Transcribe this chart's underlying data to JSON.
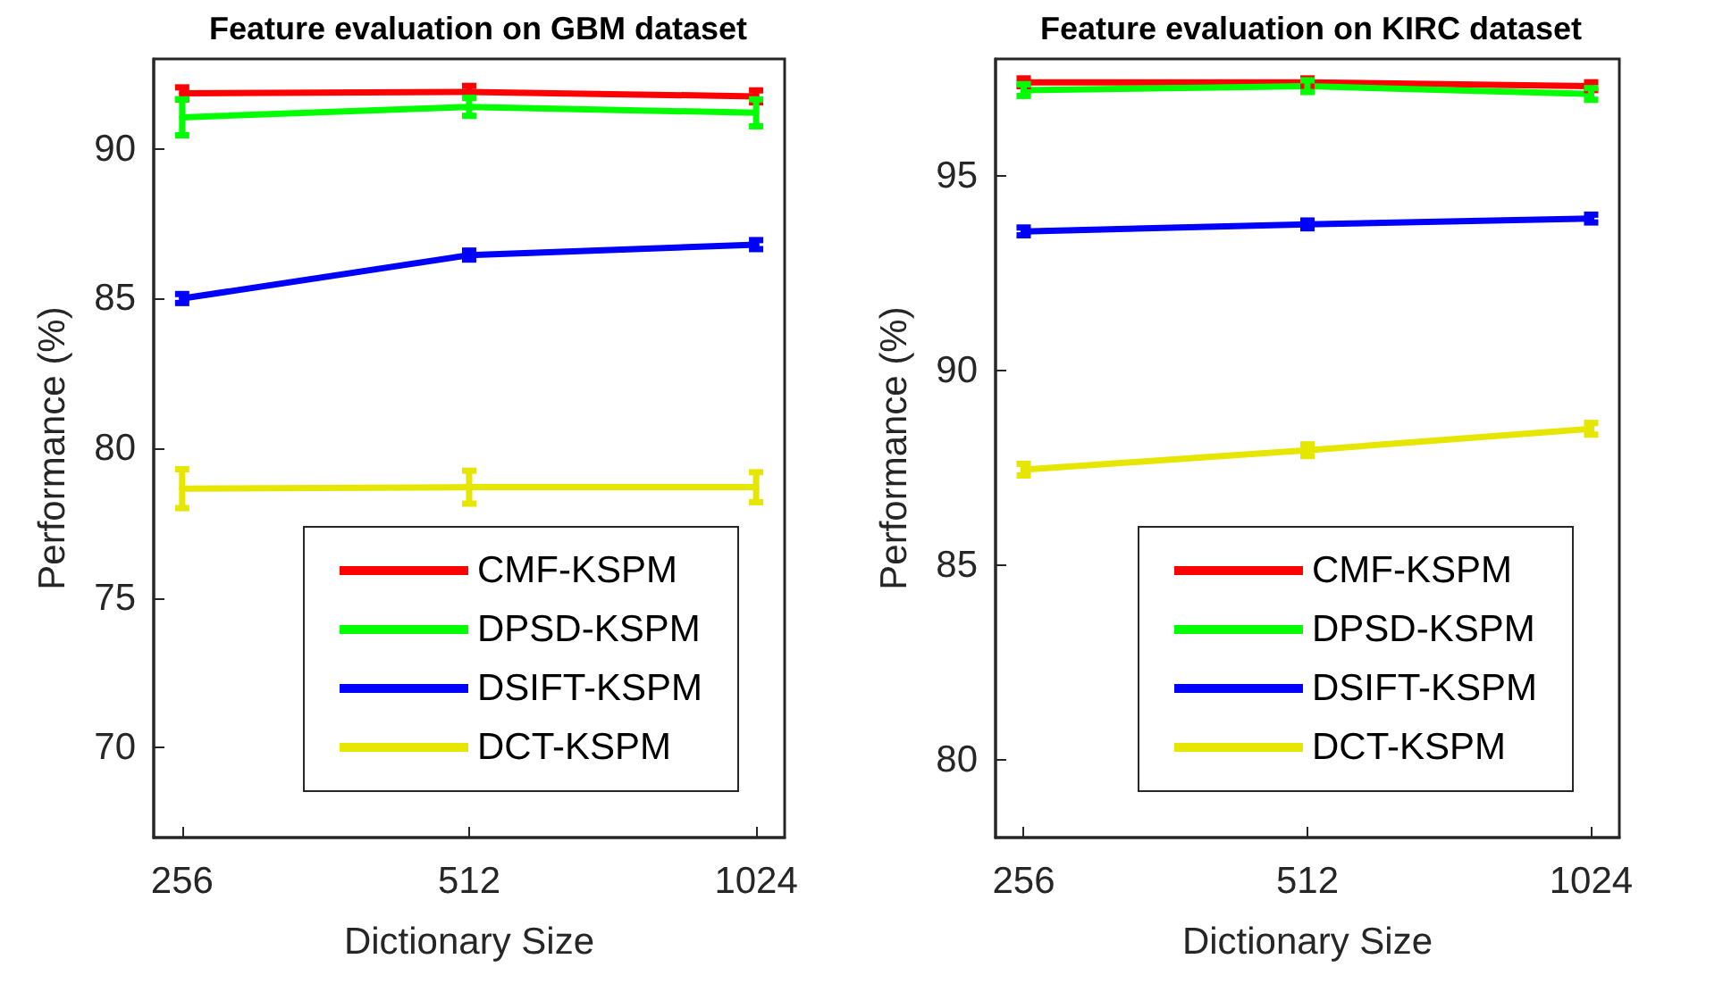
{
  "chart_data": [
    {
      "type": "line",
      "title": "Feature evaluation on GBM dataset",
      "xlabel": "Dictionary Size",
      "ylabel": "Performance (%)",
      "x": [
        256,
        512,
        1024
      ],
      "series": [
        {
          "name": "CMF-KSPM",
          "color": "#ff0000",
          "values": [
            91.85,
            91.9,
            91.75
          ],
          "errors": [
            0.2,
            0.2,
            0.2
          ]
        },
        {
          "name": "DPSD-KSPM",
          "color": "#00ff00",
          "values": [
            91.05,
            91.4,
            91.2
          ],
          "errors": [
            0.6,
            0.3,
            0.45
          ]
        },
        {
          "name": "DSIFT-KSPM",
          "color": "#0000ff",
          "values": [
            85.0,
            86.45,
            86.8
          ],
          "errors": [
            0.15,
            0.15,
            0.15
          ]
        },
        {
          "name": "DCT-KSPM",
          "color": "#e6e600",
          "values": [
            78.65,
            78.7,
            78.7
          ],
          "errors": [
            0.65,
            0.55,
            0.5
          ]
        }
      ],
      "xlim": [
        239,
        1097
      ],
      "xticks": [
        256,
        512,
        1024
      ],
      "ylim": [
        67,
        93
      ],
      "yticks": [
        70,
        75,
        80,
        85,
        90
      ],
      "log": "x",
      "legend": "bottom right",
      "grid": false,
      "marker": "none",
      "line_style": "solid"
    },
    {
      "type": "line",
      "title": "Feature evaluation on KIRC dataset",
      "xlabel": "Dictionary Size",
      "ylabel": "Performance (%)",
      "x": [
        256,
        512,
        1024
      ],
      "series": [
        {
          "name": "CMF-KSPM",
          "color": "#ff0000",
          "values": [
            97.4,
            97.4,
            97.3
          ],
          "errors": [
            0.1,
            0.1,
            0.1
          ]
        },
        {
          "name": "DPSD-KSPM",
          "color": "#00ff00",
          "values": [
            97.2,
            97.3,
            97.1
          ],
          "errors": [
            0.15,
            0.15,
            0.15
          ]
        },
        {
          "name": "DSIFT-KSPM",
          "color": "#0000ff",
          "values": [
            93.57,
            93.75,
            93.9
          ],
          "errors": [
            0.1,
            0.1,
            0.1
          ]
        },
        {
          "name": "DCT-KSPM",
          "color": "#e6e600",
          "values": [
            87.45,
            87.95,
            88.5
          ],
          "errors": [
            0.15,
            0.15,
            0.15
          ]
        }
      ],
      "xlim": [
        239,
        1097
      ],
      "xticks": [
        256,
        512,
        1024
      ],
      "ylim": [
        78,
        98
      ],
      "yticks": [
        80,
        85,
        90,
        95
      ],
      "log": "x",
      "legend": "bottom right",
      "grid": false,
      "marker": "none",
      "line_style": "solid"
    }
  ]
}
